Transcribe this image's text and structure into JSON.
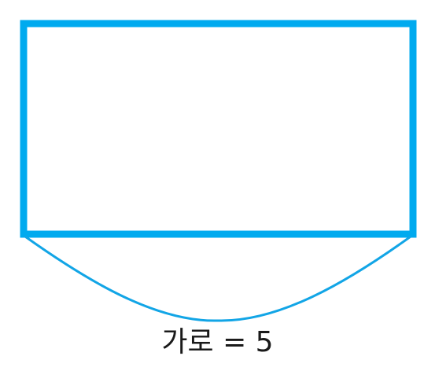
{
  "diagram": {
    "width_label": "가로 = 5",
    "colors": {
      "rectangle_stroke": "#00aaef",
      "brace_stroke": "#12a5e6",
      "text": "#1a1a1a"
    }
  }
}
